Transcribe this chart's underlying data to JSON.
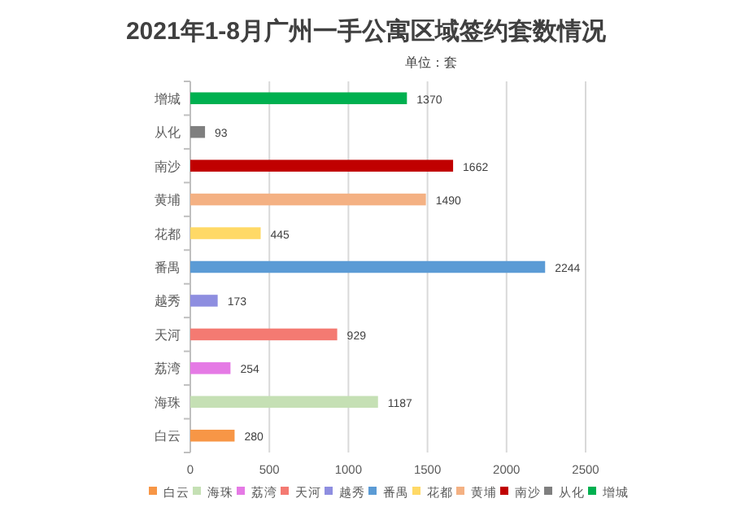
{
  "chart_data": {
    "type": "bar",
    "orientation": "horizontal",
    "title": "2021年1-8月广州一手公寓区域签约套数情况",
    "subtitle": "单位：套",
    "categories": [
      "增城",
      "从化",
      "南沙",
      "黄埔",
      "花都",
      "番禺",
      "越秀",
      "天河",
      "荔湾",
      "海珠",
      "白云"
    ],
    "series": [
      {
        "name": "增城",
        "color": "#00b050",
        "values": [
          1370,
          null,
          null,
          null,
          null,
          null,
          null,
          null,
          null,
          null,
          null
        ]
      },
      {
        "name": "从化",
        "color": "#7f7f7f",
        "values": [
          null,
          93,
          null,
          null,
          null,
          null,
          null,
          null,
          null,
          null,
          null
        ]
      },
      {
        "name": "南沙",
        "color": "#c00000",
        "values": [
          null,
          null,
          1662,
          null,
          null,
          null,
          null,
          null,
          null,
          null,
          null
        ]
      },
      {
        "name": "黄埔",
        "color": "#f4b183",
        "values": [
          null,
          null,
          null,
          1490,
          null,
          null,
          null,
          null,
          null,
          null,
          null
        ]
      },
      {
        "name": "花都",
        "color": "#ffd966",
        "values": [
          null,
          null,
          null,
          null,
          445,
          null,
          null,
          null,
          null,
          null,
          null
        ]
      },
      {
        "name": "番禺",
        "color": "#5b9bd5",
        "values": [
          null,
          null,
          null,
          null,
          null,
          2244,
          null,
          null,
          null,
          null,
          null
        ]
      },
      {
        "name": "越秀",
        "color": "#8e8ee0",
        "values": [
          null,
          null,
          null,
          null,
          null,
          null,
          173,
          null,
          null,
          null,
          null
        ]
      },
      {
        "name": "天河",
        "color": "#f47a72",
        "values": [
          null,
          null,
          null,
          null,
          null,
          null,
          null,
          929,
          null,
          null,
          null
        ]
      },
      {
        "name": "荔湾",
        "color": "#e57ae5",
        "values": [
          null,
          null,
          null,
          null,
          null,
          null,
          null,
          null,
          254,
          null,
          null
        ]
      },
      {
        "name": "海珠",
        "color": "#c5e0b4",
        "values": [
          null,
          null,
          null,
          null,
          null,
          null,
          null,
          null,
          null,
          1187,
          null
        ]
      },
      {
        "name": "白云",
        "color": "#f79646",
        "values": [
          null,
          null,
          null,
          null,
          null,
          null,
          null,
          null,
          null,
          null,
          280
        ]
      }
    ],
    "xlim": [
      0,
      2500
    ],
    "xticks": [
      0,
      500,
      1000,
      1500,
      2000,
      2500
    ],
    "grid": "x",
    "data_labels": true,
    "legend": "bottom"
  }
}
